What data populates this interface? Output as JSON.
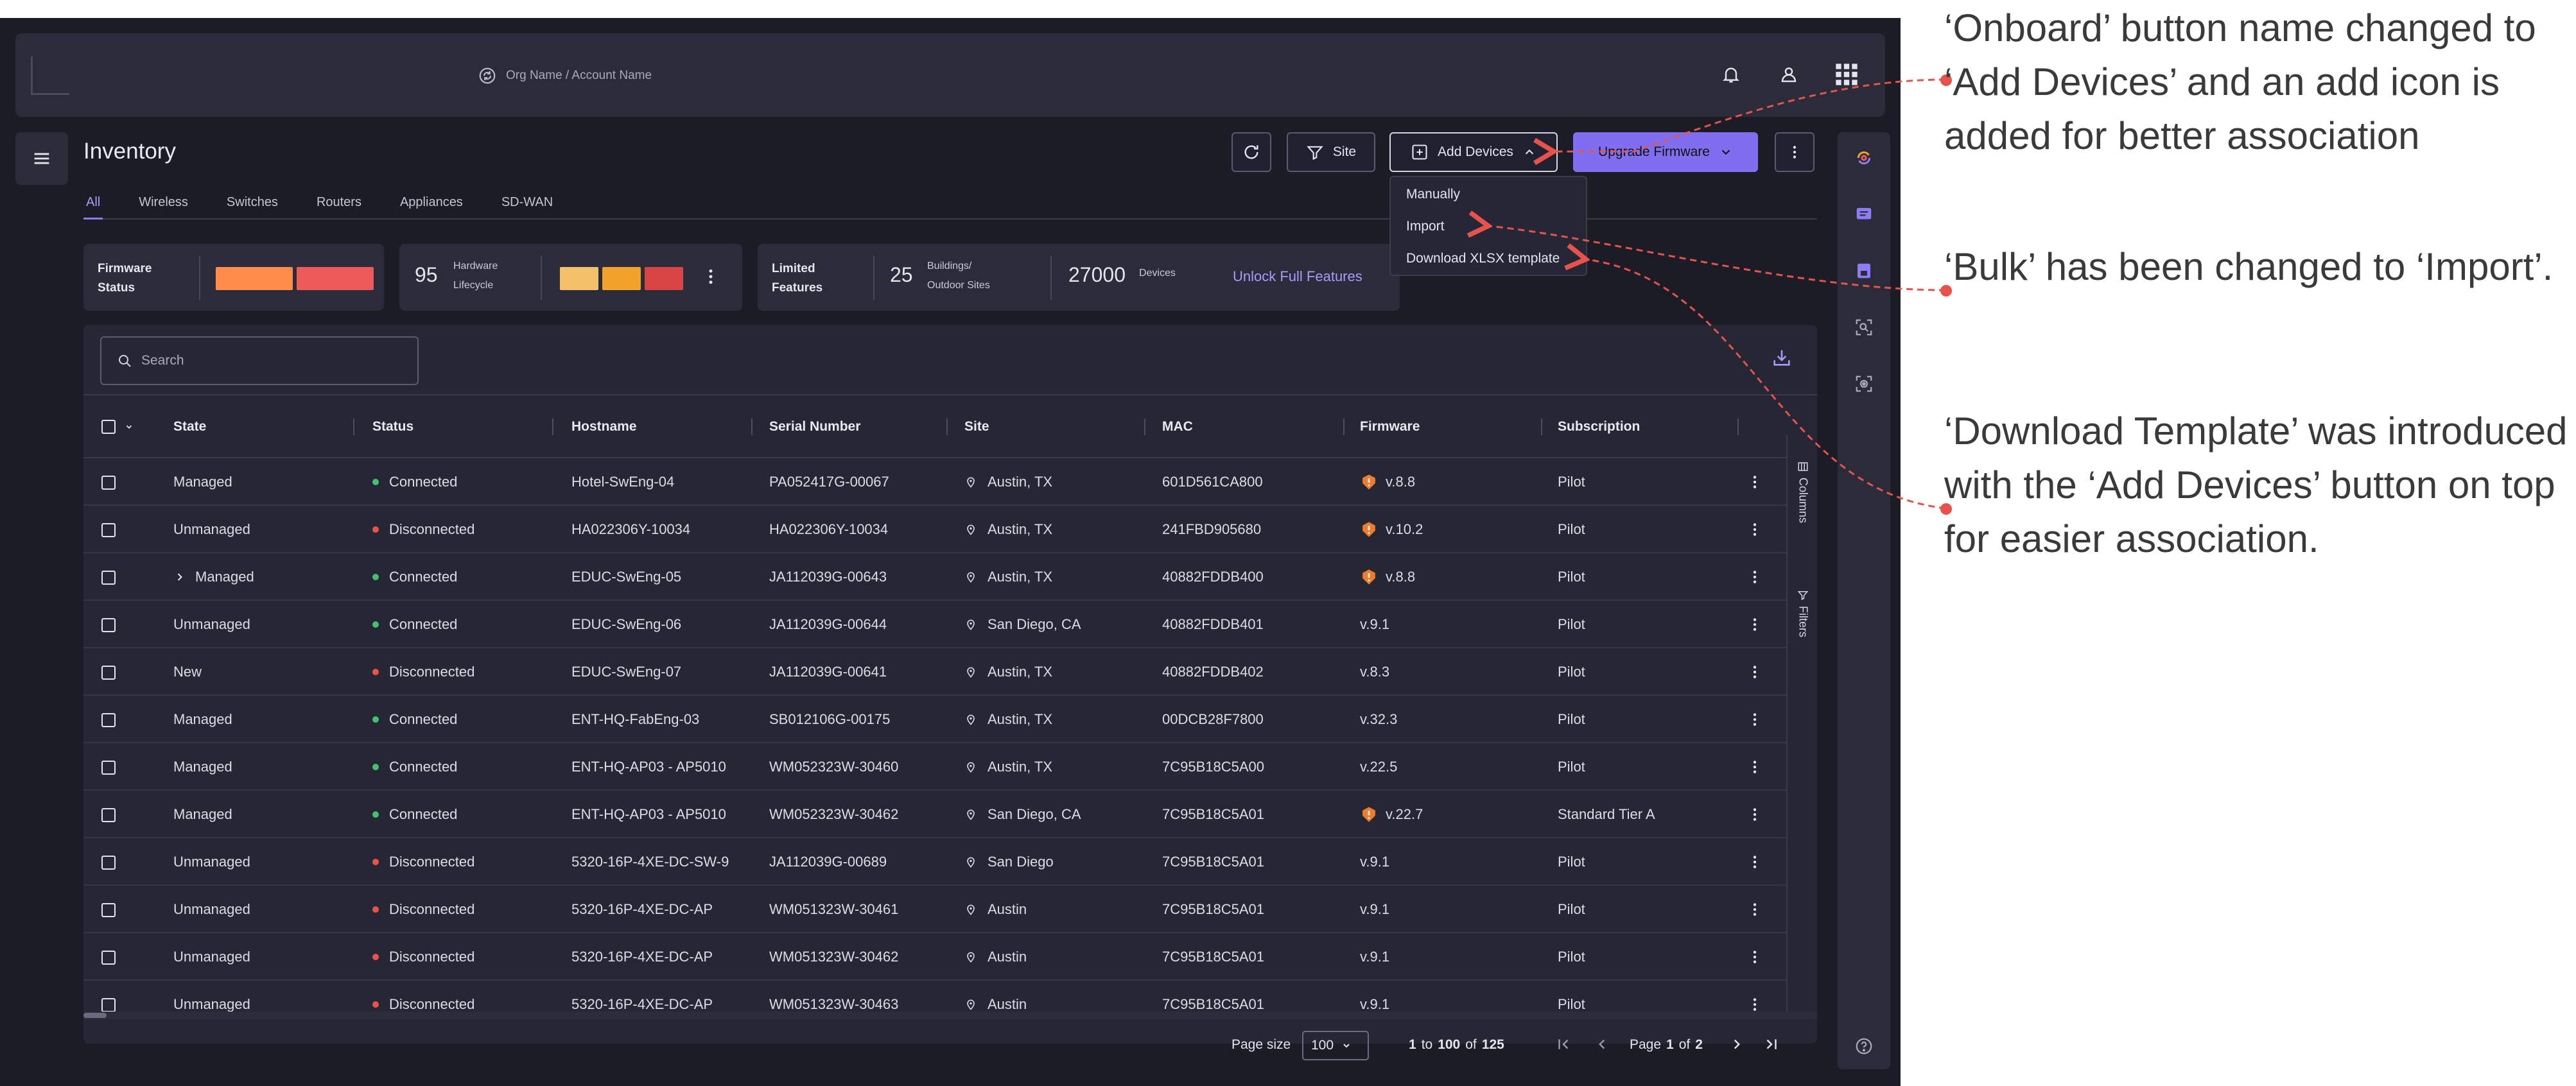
{
  "header": {
    "org_label": "Org Name / Account Name",
    "icons": [
      "sync-icon",
      "bell-icon",
      "user-icon",
      "apps-grid-icon"
    ]
  },
  "page": {
    "title": "Inventory"
  },
  "tabs": [
    {
      "label": "All",
      "active": true
    },
    {
      "label": "Wireless",
      "active": false
    },
    {
      "label": "Switches",
      "active": false
    },
    {
      "label": "Routers",
      "active": false
    },
    {
      "label": "Appliances",
      "active": false
    },
    {
      "label": "SD-WAN",
      "active": false
    }
  ],
  "toolbar": {
    "site_label": "Site",
    "add_devices_label": "Add Devices",
    "upgrade_label": "Upgrade Firmware"
  },
  "add_devices_menu": [
    "Manually",
    "Import",
    "Download XLSX template"
  ],
  "summary": {
    "firmware_status_label": "Firmware Status",
    "hardware_count": "95",
    "hardware_label": "Hardware Lifecycle",
    "limited_label": "Limited Features",
    "buildings_count": "25",
    "buildings_label": "Buildings/ Outdoor Sites",
    "devices_count": "27000",
    "devices_label": "Devices",
    "unlock_label": "Unlock Full Features",
    "colors": {
      "orange": "#ff8c4a",
      "red": "#ee5a5a",
      "yellow": "#f5c06a",
      "amber": "#f0a22a",
      "dark_red": "#d94545"
    }
  },
  "search": {
    "placeholder": "Search"
  },
  "table": {
    "columns": [
      "State",
      "Status",
      "Hostname",
      "Serial Number",
      "Site",
      "MAC",
      "Firmware",
      "Subscription"
    ],
    "rows": [
      {
        "state": "Managed",
        "expand": false,
        "status": "Connected",
        "hostname": "Hotel-SwEng-04",
        "serial": "PA052417G-00067",
        "site": "Austin, TX",
        "mac": "601D561CA800",
        "fw_warn": true,
        "firmware": "v.8.8",
        "subscription": "Pilot"
      },
      {
        "state": "Unmanaged",
        "expand": false,
        "status": "Disconnected",
        "hostname": "HA022306Y-10034",
        "serial": "HA022306Y-10034",
        "site": "Austin, TX",
        "mac": "241FBD905680",
        "fw_warn": true,
        "firmware": "v.10.2",
        "subscription": "Pilot"
      },
      {
        "state": "Managed",
        "expand": true,
        "status": "Connected",
        "hostname": "EDUC-SwEng-05",
        "serial": "JA112039G-00643",
        "site": "Austin, TX",
        "mac": "40882FDDB400",
        "fw_warn": true,
        "firmware": "v.8.8",
        "subscription": "Pilot"
      },
      {
        "state": "Unmanaged",
        "expand": false,
        "status": "Connected",
        "hostname": "EDUC-SwEng-06",
        "serial": "JA112039G-00644",
        "site": "San Diego, CA",
        "mac": "40882FDDB401",
        "fw_warn": false,
        "firmware": "v.9.1",
        "subscription": "Pilot"
      },
      {
        "state": "New",
        "expand": false,
        "status": "Disconnected",
        "hostname": "EDUC-SwEng-07",
        "serial": "JA112039G-00641",
        "site": "Austin, TX",
        "mac": "40882FDDB402",
        "fw_warn": false,
        "firmware": "v.8.3",
        "subscription": "Pilot"
      },
      {
        "state": "Managed",
        "expand": false,
        "status": "Connected",
        "hostname": "ENT-HQ-FabEng-03",
        "serial": "SB012106G-00175",
        "site": "Austin, TX",
        "mac": "00DCB28F7800",
        "fw_warn": false,
        "firmware": "v.32.3",
        "subscription": "Pilot"
      },
      {
        "state": "Managed",
        "expand": false,
        "status": "Connected",
        "hostname": "ENT-HQ-AP03 - AP5010",
        "serial": "WM052323W-30460",
        "site": "Austin, TX",
        "mac": "7C95B18C5A00",
        "fw_warn": false,
        "firmware": "v.22.5",
        "subscription": "Pilot"
      },
      {
        "state": "Managed",
        "expand": false,
        "status": "Connected",
        "hostname": "ENT-HQ-AP03 - AP5010",
        "serial": "WM052323W-30462",
        "site": "San Diego, CA",
        "mac": "7C95B18C5A01",
        "fw_warn": true,
        "firmware": "v.22.7",
        "subscription": "Standard Tier A"
      },
      {
        "state": "Unmanaged",
        "expand": false,
        "status": "Disconnected",
        "hostname": "5320-16P-4XE-DC-SW-9",
        "serial": "JA112039G-00689",
        "site": "San Diego",
        "mac": "7C95B18C5A01",
        "fw_warn": false,
        "firmware": "v.9.1",
        "subscription": "Pilot"
      },
      {
        "state": "Unmanaged",
        "expand": false,
        "status": "Disconnected",
        "hostname": "5320-16P-4XE-DC-AP",
        "serial": "WM051323W-30461",
        "site": "Austin",
        "mac": "7C95B18C5A01",
        "fw_warn": false,
        "firmware": "v.9.1",
        "subscription": "Pilot"
      },
      {
        "state": "Unmanaged",
        "expand": false,
        "status": "Disconnected",
        "hostname": "5320-16P-4XE-DC-AP",
        "serial": "WM051323W-30462",
        "site": "Austin",
        "mac": "7C95B18C5A01",
        "fw_warn": false,
        "firmware": "v.9.1",
        "subscription": "Pilot"
      },
      {
        "state": "Unmanaged",
        "expand": false,
        "status": "Disconnected",
        "hostname": "5320-16P-4XE-DC-AP",
        "serial": "WM051323W-30463",
        "site": "Austin",
        "mac": "7C95B18C5A01",
        "fw_warn": false,
        "firmware": "v.9.1",
        "subscription": "Pilot"
      }
    ],
    "status_colors": {
      "Connected": "#3ec46d",
      "Disconnected": "#f0504a"
    }
  },
  "side_tabs": {
    "columns": "Columns",
    "filters": "Filters"
  },
  "pagination": {
    "page_size_label": "Page size",
    "page_size": "100",
    "range_from": "1",
    "range_to_word": "to",
    "range_to": "100",
    "of_word": "of",
    "total": "125",
    "page_word": "Page",
    "page": "1",
    "page_of_word": "of",
    "page_total": "2"
  },
  "annotations": [
    {
      "text": "‘Onboard’ button name changed to ‘Add Devices’ and an add icon is added for better association"
    },
    {
      "text": "‘Bulk’ has been changed to ‘Import’."
    },
    {
      "text": "‘Download Template’ was introduced with the ‘Add Devices’ button on top for easier association."
    }
  ],
  "colors": {
    "accent": "#7f6ff0",
    "annotation_red": "#e8524a",
    "bg": "#1c1c26",
    "panel": "#262734"
  }
}
